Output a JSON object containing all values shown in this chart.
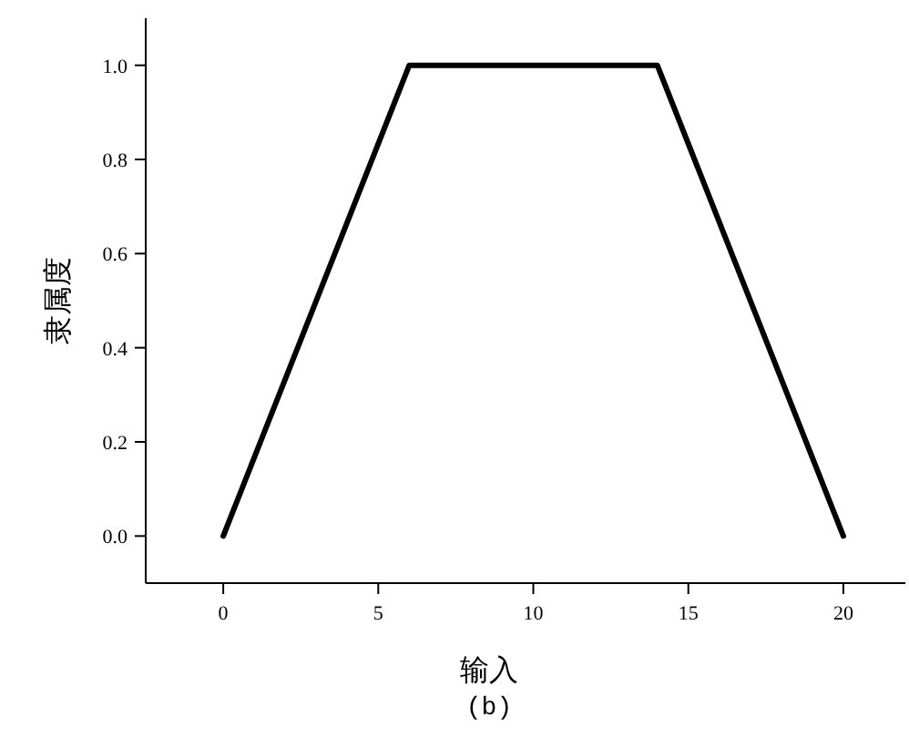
{
  "chart_data": {
    "type": "line",
    "xlabel": "输入",
    "ylabel": "隶属度",
    "annotations": [
      "(b)"
    ],
    "x": [
      0,
      6,
      14,
      20
    ],
    "series": [
      {
        "color": "#000000",
        "values": [
          0,
          1,
          1,
          0
        ]
      }
    ],
    "xlim": [
      -2.5,
      22
    ],
    "ylim": [
      -0.1,
      1.1
    ],
    "xticks": [
      0,
      5,
      10,
      15,
      20
    ],
    "yticks": [
      {
        "value": 0,
        "label": "0.0"
      },
      {
        "value": 0.2,
        "label": "0.2"
      },
      {
        "value": 0.4,
        "label": "0.4"
      },
      {
        "value": 0.6,
        "label": "0.6"
      },
      {
        "value": 0.8,
        "label": "0.8"
      },
      {
        "value": 1,
        "label": "1.0"
      }
    ],
    "marker": "none",
    "line_style": "solid"
  }
}
